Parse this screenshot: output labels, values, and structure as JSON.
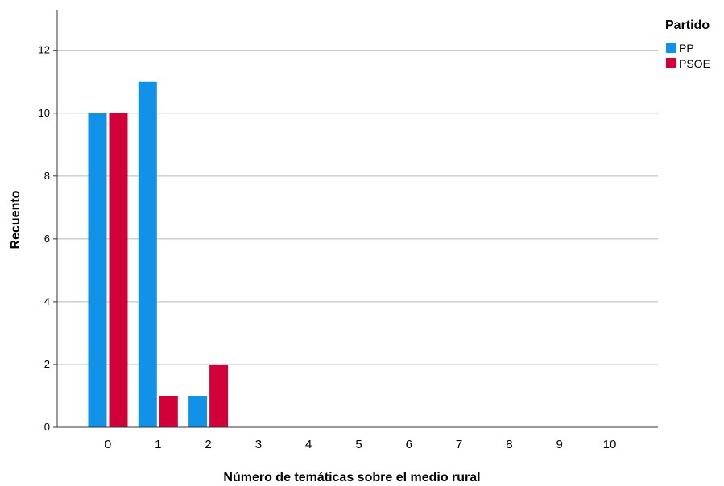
{
  "chart_data": {
    "type": "bar",
    "xlabel": "Número de temáticas sobre el medio rural",
    "ylabel": "Recuento",
    "categories": [
      "0",
      "1",
      "2",
      "3",
      "4",
      "5",
      "6",
      "7",
      "8",
      "9",
      "10"
    ],
    "series": [
      {
        "name": "PP",
        "color": "#1192e8",
        "values": [
          10,
          11,
          1,
          0,
          0,
          0,
          0,
          0,
          0,
          0,
          0
        ]
      },
      {
        "name": "PSOE",
        "color": "#d2003a",
        "values": [
          10,
          1,
          2,
          0,
          0,
          0,
          0,
          0,
          0,
          0,
          0
        ]
      }
    ],
    "yticks": [
      0,
      2,
      4,
      6,
      8,
      10,
      12
    ],
    "ylim": [
      0,
      13.3
    ],
    "grid": true,
    "legend": {
      "title": "Partido",
      "placement": "top-right"
    }
  }
}
